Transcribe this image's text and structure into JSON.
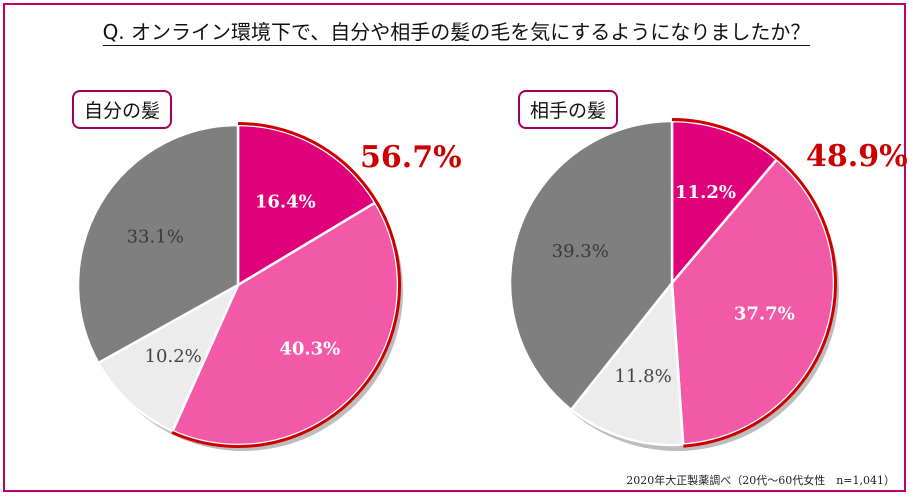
{
  "title": "Q. オンライン環境下で、自分や相手の髪の毛を気にするようになりましたか？",
  "source": "2020年大正製薬調べ（20代～60代女性　n=1,041）",
  "colors": {
    "frame": "#c0006a",
    "accent_red": "#cc0000"
  },
  "chart_data": [
    {
      "type": "pie",
      "title": "自分の髪",
      "total_label": "56.7%",
      "slices": [
        {
          "label": "16.4%",
          "value": 16.4,
          "color": "#e0007a",
          "text_color": "#ffffff"
        },
        {
          "label": "40.3%",
          "value": 40.3,
          "color": "#f25aa8",
          "text_color": "#ffffff"
        },
        {
          "label": "10.2%",
          "value": 10.2,
          "color": "#ececec",
          "text_color": "#444444"
        },
        {
          "label": "33.1%",
          "value": 33.1,
          "color": "#7f7f7f",
          "text_color": "#3a3a3a"
        }
      ]
    },
    {
      "type": "pie",
      "title": "相手の髪",
      "total_label": "48.9%",
      "slices": [
        {
          "label": "11.2%",
          "value": 11.2,
          "color": "#e0007a",
          "text_color": "#ffffff"
        },
        {
          "label": "37.7%",
          "value": 37.7,
          "color": "#f25aa8",
          "text_color": "#ffffff"
        },
        {
          "label": "11.8%",
          "value": 11.8,
          "color": "#ececec",
          "text_color": "#444444"
        },
        {
          "label": "39.3%",
          "value": 39.3,
          "color": "#7f7f7f",
          "text_color": "#3a3a3a"
        }
      ]
    }
  ]
}
